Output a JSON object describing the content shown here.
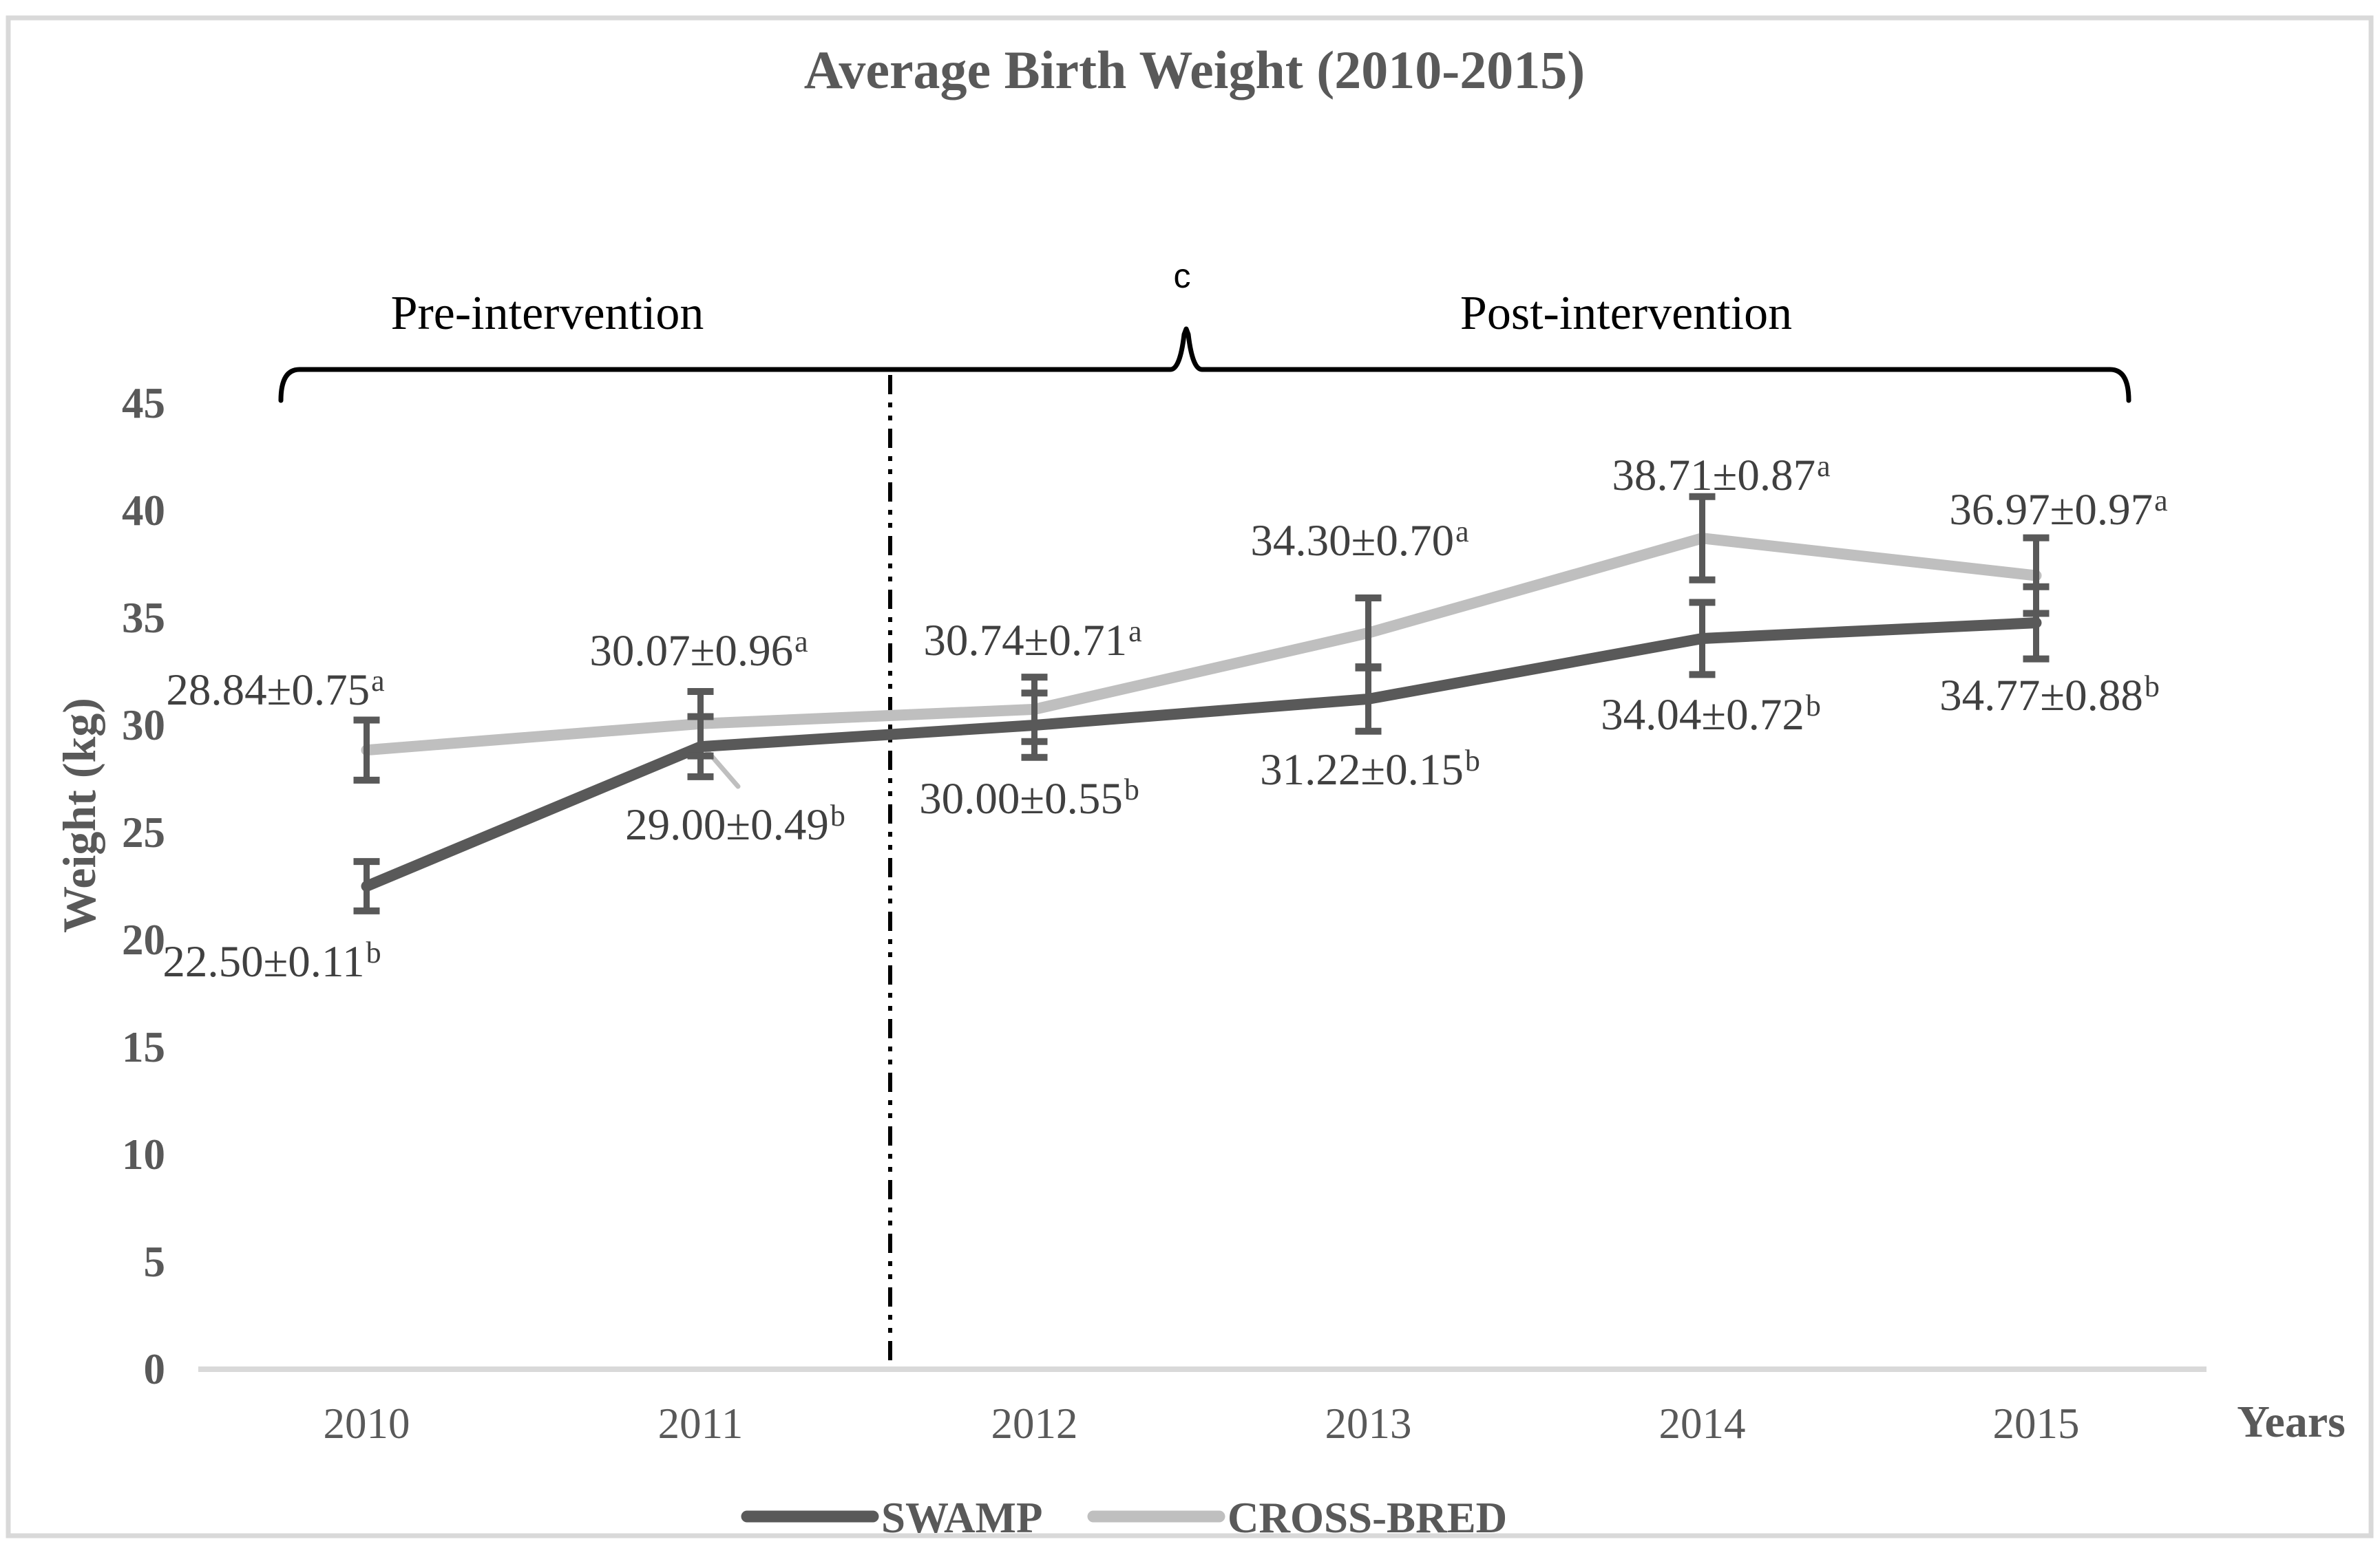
{
  "figure": {
    "background": "#ffffff",
    "border_color": "#d9d9d9"
  },
  "header": {
    "title": "Average Birth Weight (2010-2015)"
  },
  "annotations": {
    "pre_label": "Pre-intervention",
    "post_label": "Post-intervention",
    "brace_center_label": "c"
  },
  "axes": {
    "y_title": "Weight (kg)",
    "x_title": "Years"
  },
  "legend": {
    "items": [
      {
        "label": "SWAMP",
        "color": "#595959"
      },
      {
        "label": "CROSS-BRED",
        "color": "#bfbfbf"
      }
    ]
  },
  "chart_data": {
    "type": "line",
    "title": "Average Birth Weight (2010-2015)",
    "xlabel": "Years",
    "ylabel": "Weight (kg)",
    "categories": [
      "2010",
      "2011",
      "2012",
      "2013",
      "2014",
      "2015"
    ],
    "yticks": [
      0,
      5,
      10,
      15,
      20,
      25,
      30,
      35,
      40,
      45
    ],
    "ylim": [
      0,
      45
    ],
    "grid": false,
    "legend_position": "bottom-center",
    "divider": {
      "between": [
        "2011",
        "2012"
      ],
      "style": "dash-dot-dot",
      "label": "c"
    },
    "phases": [
      {
        "label": "Pre-intervention",
        "span": [
          "2010",
          "2011.5"
        ]
      },
      {
        "label": "Post-intervention",
        "span": [
          "2011.5",
          "2015"
        ]
      }
    ],
    "error_bar_color": "#595959",
    "series": [
      {
        "name": "SWAMP",
        "color": "#595959",
        "values": [
          22.5,
          29.0,
          30.0,
          31.22,
          34.04,
          34.77
        ],
        "se": [
          0.11,
          0.49,
          0.55,
          0.15,
          0.72,
          0.88
        ],
        "sig_letters": [
          "b",
          "b",
          "b",
          "b",
          "b",
          "b"
        ],
        "point_labels": [
          "22.50±0.11",
          "29.00±0.49",
          "30.00±0.55",
          "31.22±0.15",
          "34.04±0.72",
          "34.77±0.88"
        ],
        "error_bar_halfspan_kg": [
          1.15,
          1.4,
          1.5,
          1.5,
          1.68,
          1.68
        ]
      },
      {
        "name": "CROSS-BRED",
        "color": "#bfbfbf",
        "values": [
          28.84,
          30.07,
          30.74,
          34.3,
          38.71,
          36.97
        ],
        "se": [
          0.75,
          0.96,
          0.71,
          0.7,
          0.87,
          0.97
        ],
        "sig_letters": [
          "a",
          "a",
          "a",
          "a",
          "a",
          "a"
        ],
        "point_labels": [
          "28.84±0.75",
          "30.07±0.96",
          "30.74±0.71",
          "34.30±0.70",
          "38.71±0.87",
          "36.97±0.97"
        ],
        "error_bar_halfspan_kg": [
          1.4,
          1.5,
          1.5,
          1.63,
          1.94,
          1.76
        ]
      }
    ]
  }
}
